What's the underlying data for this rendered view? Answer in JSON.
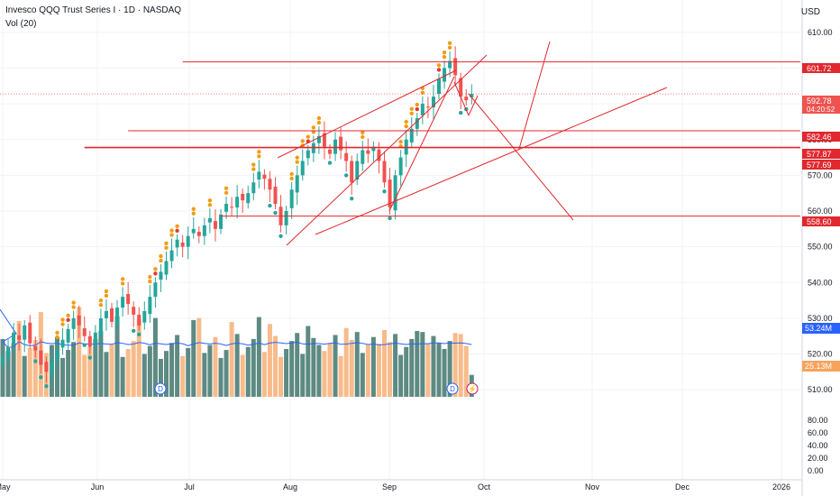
{
  "header": {
    "symbol_title": "Invesco QQQ Trust Series I · 1D · NASDAQ",
    "indicator": "Vol (20)",
    "currency": "USD"
  },
  "chart_data": {
    "type": "candlestick",
    "symbol": "QQQ",
    "interval": "1D",
    "x_ticks": [
      "May",
      "Jun",
      "Jul",
      "Aug",
      "Sep",
      "Oct",
      "Nov",
      "Dec",
      "2026"
    ],
    "price_ticks": [
      "610.00",
      "600.00",
      "590.00",
      "580.00",
      "570.00",
      "560.00",
      "550.00",
      "540.00",
      "530.00",
      "520.00",
      "510.00"
    ],
    "volume_ticks": [
      "80.00",
      "60.00",
      "40.00",
      "20.00",
      "0.00"
    ],
    "price_range": [
      505,
      614
    ],
    "volume_range": [
      0,
      95
    ],
    "price_labels": [
      {
        "value": 601.72,
        "text": "601.72",
        "color": "#e0282e"
      },
      {
        "value": 592.78,
        "text": "592.78",
        "sub": "04:20:52",
        "color": "#ef5350"
      },
      {
        "value": 582.46,
        "text": "582.46",
        "color": "#e0282e"
      },
      {
        "value": 577.87,
        "text": "577.87",
        "color": "#e0282e"
      },
      {
        "value": 577.69,
        "text": "577.69",
        "color": "#e0282e"
      },
      {
        "value": 558.6,
        "text": "558.60",
        "color": "#e0282e"
      }
    ],
    "volume_labels": [
      {
        "value": 53.24,
        "text": "53.24M",
        "color": "#2962ff"
      },
      {
        "value": 25.13,
        "text": "25.13M",
        "color": "#f7a35c"
      }
    ],
    "colors": {
      "up": "#26a69a",
      "down": "#ef5350",
      "vol_up": "#5d8a82",
      "vol_down": "#f8bb8a",
      "drawing": "#e0282e",
      "vol_ma": "#2962ff",
      "dot_top": "#f39c12",
      "dot_red": "#e53935",
      "dot_green": "#26a69a"
    },
    "horizontal_levels": [
      {
        "price": 601.72,
        "start_index": 33
      },
      {
        "price": 582.46,
        "start_index": 23
      },
      {
        "price": 577.87,
        "start_index": 15
      },
      {
        "price": 577.69,
        "start_index": 15
      },
      {
        "price": 558.6,
        "start_index": 40
      }
    ],
    "closes": [
      519.0,
      522.0,
      526.0,
      524.0,
      528.0,
      523.0,
      521.0,
      517.0,
      515.0,
      518.0,
      521.0,
      524.0,
      527.0,
      530.0,
      528.0,
      525.0,
      522.0,
      526.0,
      530.0,
      532.0,
      529.0,
      533.0,
      536.0,
      534.0,
      531.0,
      528.0,
      532.0,
      536.0,
      540.0,
      543.0,
      546.0,
      549.0,
      552.0,
      550.0,
      553.0,
      555.0,
      553.0,
      556.0,
      558.0,
      555.0,
      559.0,
      562.0,
      561.0,
      564.0,
      563.0,
      565.0,
      568.0,
      571.0,
      569.0,
      566.0,
      562.0,
      556.0,
      560.0,
      566.0,
      570.0,
      574.0,
      577.0,
      579.0,
      581.0,
      578.0,
      576.0,
      580.0,
      577.0,
      574.0,
      568.0,
      574.0,
      577.0,
      576.0,
      578.0,
      574.0,
      568.0,
      561.0,
      570.0,
      575.0,
      580.0,
      583.0,
      586.0,
      590.0,
      589.0,
      592.0,
      597.0,
      600.0,
      602.0,
      598.0,
      592.0,
      591.0,
      592.78
    ]
  }
}
